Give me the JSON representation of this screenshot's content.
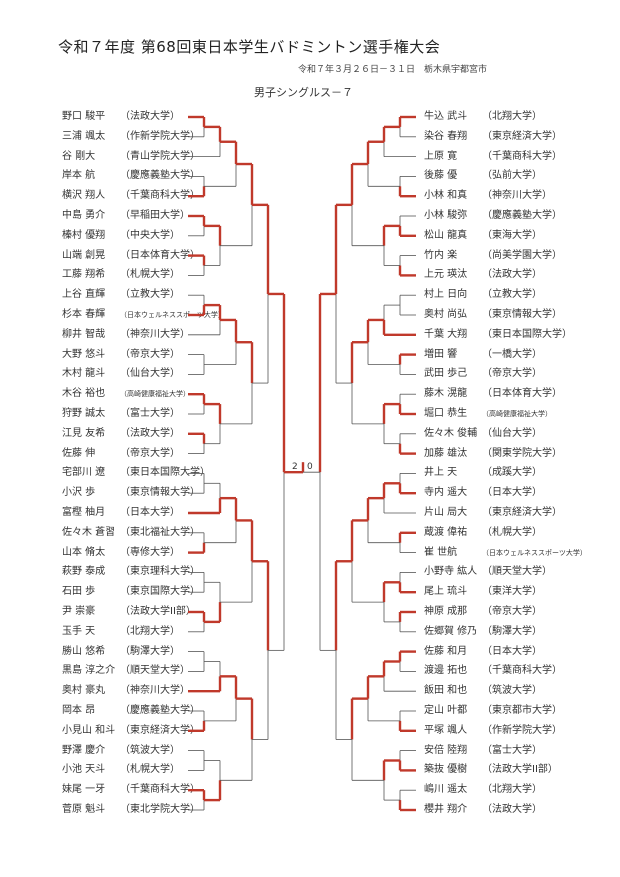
{
  "header": {
    "title": "令和７年度 第68回東日本学生バドミントン選手権大会",
    "date_venue": "令和７年３月２６日－３１日　栃木県宇都宮市",
    "event": "男子シングルス－７"
  },
  "colors": {
    "winner_line": "#c0392b",
    "line": "#555555"
  },
  "final": {
    "left_score": "2",
    "right_score": "0"
  },
  "left": {
    "players": [
      {
        "name": "野口 駿平",
        "school": "（法政大学）",
        "won": true
      },
      {
        "name": "三浦 颯太",
        "school": "（作新学院大学）",
        "won": false
      },
      {
        "name": "谷 剛大",
        "school": "（青山学院大学）",
        "won": true
      },
      {
        "name": "岸本 航",
        "school": "（慶應義塾大学）",
        "won": false
      },
      {
        "name": "横沢 翔人",
        "school": "（千葉商科大学）",
        "won": true
      },
      {
        "name": "中島 勇介",
        "school": "（早稲田大学）",
        "won": true
      },
      {
        "name": "榛村 優翔",
        "school": "（中央大学）",
        "won": false
      },
      {
        "name": "山端 創晃",
        "school": "（日本体育大学）",
        "won": true
      },
      {
        "name": "工藤 翔希",
        "school": "（札幌大学）",
        "won": false
      },
      {
        "name": "上谷 直輝",
        "school": "（立教大学）",
        "won": false
      },
      {
        "name": "杉本 春輝",
        "school": "（日本ウェルネススポーツ大学）",
        "won": true
      },
      {
        "name": "柳井 智哉",
        "school": "（神奈川大学）",
        "won": true
      },
      {
        "name": "大野 悠斗",
        "school": "（帝京大学）",
        "won": false
      },
      {
        "name": "木村 龍斗",
        "school": "（仙台大学）",
        "won": false
      },
      {
        "name": "木谷 裕也",
        "school": "（高崎健康福祉大学）",
        "won": true
      },
      {
        "name": "狩野 誠太",
        "school": "（富士大学）",
        "won": true
      },
      {
        "name": "江見 友希",
        "school": "（法政大学）",
        "won": true
      },
      {
        "name": "佐藤 伸",
        "school": "（帝京大学）",
        "won": true
      },
      {
        "name": "宅部川 遼",
        "school": "（東日本国際大学）",
        "won": false
      },
      {
        "name": "小沢 歩",
        "school": "（東京情報大学）",
        "won": false
      },
      {
        "name": "富樫 柚月",
        "school": "（日本大学）",
        "won": true
      },
      {
        "name": "佐々木 蒼習",
        "school": "（東北福祉大学）",
        "won": false
      },
      {
        "name": "山本 脩太",
        "school": "（専修大学）",
        "won": true
      },
      {
        "name": "萩野 泰成",
        "school": "（東京理科大学）",
        "won": false
      },
      {
        "name": "石田 歩",
        "school": "（東京国際大学）",
        "won": false
      },
      {
        "name": "尹 崇豪",
        "school": "（法政大学II部）",
        "won": true
      },
      {
        "name": "玉手 天",
        "school": "（北翔大学）",
        "won": true
      },
      {
        "name": "勝山 悠希",
        "school": "（駒澤大学）",
        "won": false
      },
      {
        "name": "黒島 淳之介",
        "school": "（順天堂大学）",
        "won": false
      },
      {
        "name": "奥村 豪丸",
        "school": "（神奈川大学）",
        "won": true
      },
      {
        "name": "岡本 昂",
        "school": "（慶應義塾大学）",
        "won": false
      },
      {
        "name": "小見山 和斗",
        "school": "（東京経済大学）",
        "won": true
      },
      {
        "name": "野澤 慶介",
        "school": "（筑波大学）",
        "won": false
      },
      {
        "name": "小池 天斗",
        "school": "（札幌大学）",
        "won": false
      },
      {
        "name": "妹尾 一牙",
        "school": "（千葉商科大学）",
        "won": true
      },
      {
        "name": "菅原 魁斗",
        "school": "（東北学院大学）",
        "won": true
      }
    ]
  },
  "right": {
    "players": [
      {
        "name": "牛込 武斗",
        "school": "（北翔大学）",
        "won": true
      },
      {
        "name": "染谷 春翔",
        "school": "（東京経済大学）",
        "won": false
      },
      {
        "name": "上原 寛",
        "school": "（千葉商科大学）",
        "won": true
      },
      {
        "name": "後藤 優",
        "school": "（弘前大学）",
        "won": false
      },
      {
        "name": "小林 和真",
        "school": "（神奈川大学）",
        "won": true
      },
      {
        "name": "小林 駿弥",
        "school": "（慶應義塾大学）",
        "won": false
      },
      {
        "name": "松山 龍真",
        "school": "（東海大学）",
        "won": true
      },
      {
        "name": "竹内 楽",
        "school": "（尚美学園大学）",
        "won": false
      },
      {
        "name": "上元 瑛汰",
        "school": "（法政大学）",
        "won": true
      },
      {
        "name": "村上 日向",
        "school": "（立教大学）",
        "won": false
      },
      {
        "name": "奥村 尚弘",
        "school": "（東京情報大学）",
        "won": false
      },
      {
        "name": "千葉 大翔",
        "school": "（東日本国際大学）",
        "won": true
      },
      {
        "name": "増田 響",
        "school": "（一橋大学）",
        "won": true
      },
      {
        "name": "武田 歩己",
        "school": "（帝京大学）",
        "won": false
      },
      {
        "name": "藤木 滉龍",
        "school": "（日本体育大学）",
        "won": false
      },
      {
        "name": "堀口 恭生",
        "school": "（高崎健康福祉大学）",
        "won": true
      },
      {
        "name": "佐々木 俊輔",
        "school": "（仙台大学）",
        "won": false
      },
      {
        "name": "加藤 雄汰",
        "school": "（関東学院大学）",
        "won": true
      },
      {
        "name": "井上 天",
        "school": "（成蹊大学）",
        "won": false
      },
      {
        "name": "寺内 遥大",
        "school": "（日本大学）",
        "won": true
      },
      {
        "name": "片山 局大",
        "school": "（東京経済大学）",
        "won": true
      },
      {
        "name": "蔵渡 偉祐",
        "school": "（札幌大学）",
        "won": true
      },
      {
        "name": "崔 世航",
        "school": "（日本ウェルネススポーツ大学）",
        "won": false
      },
      {
        "name": "小野寺 紘人",
        "school": "（順天堂大学）",
        "won": false
      },
      {
        "name": "尾上 琉斗",
        "school": "（東洋大学）",
        "won": true
      },
      {
        "name": "神原 成那",
        "school": "（帝京大学）",
        "won": true
      },
      {
        "name": "佐郷賀 修乃",
        "school": "（駒澤大学）",
        "won": false
      },
      {
        "name": "佐藤 和月",
        "school": "（日本大学）",
        "won": true
      },
      {
        "name": "渡邊 拓也",
        "school": "（千葉商科大学）",
        "won": false
      },
      {
        "name": "飯田 和也",
        "school": "（筑波大学）",
        "won": false
      },
      {
        "name": "定山 叶都",
        "school": "（東京都市大学）",
        "won": false
      },
      {
        "name": "平塚 颯人",
        "school": "（作新学院大学）",
        "won": true
      },
      {
        "name": "安倍 陸翔",
        "school": "（富士大学）",
        "won": false
      },
      {
        "name": "築抜 優樹",
        "school": "（法政大学II部）",
        "won": true
      },
      {
        "name": "嶋川 遥太",
        "school": "（北翔大学）",
        "won": false
      },
      {
        "name": "櫻井 翔介",
        "school": "（法政大学）",
        "won": true
      }
    ]
  }
}
